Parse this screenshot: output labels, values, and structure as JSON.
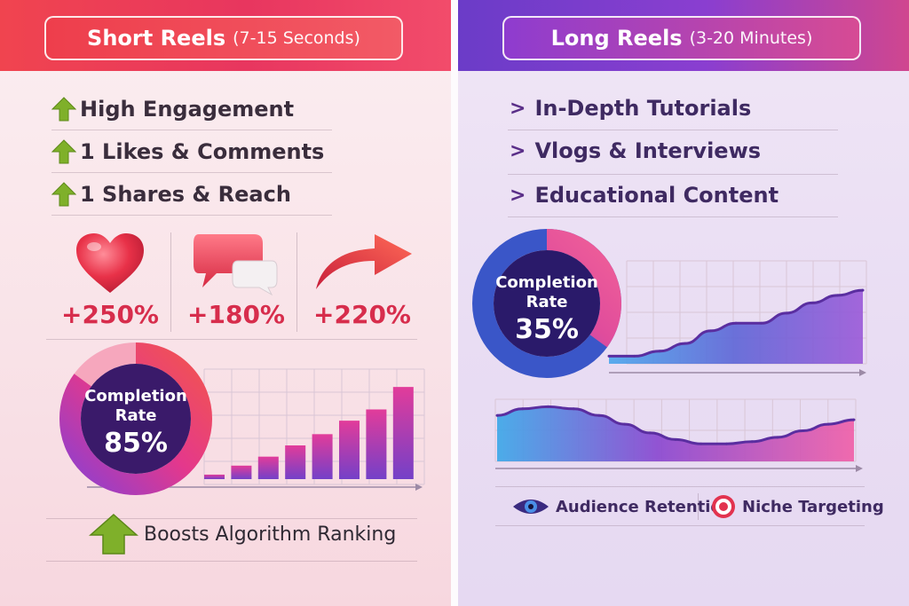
{
  "left": {
    "header": {
      "title": "Short Reels",
      "subtitle": "(7-15 Seconds)"
    },
    "bullets": [
      {
        "label": "High Engagement"
      },
      {
        "label": "1 Likes & Comments"
      },
      {
        "label": "1 Shares & Reach"
      }
    ],
    "metrics": [
      {
        "icon": "heart-icon",
        "value": "+250%"
      },
      {
        "icon": "speech-bubbles-icon",
        "value": "+180%"
      },
      {
        "icon": "share-arrow-icon",
        "value": "+220%"
      }
    ],
    "completion": {
      "title_line1": "Completion",
      "title_line2": "Rate",
      "value": "85%",
      "fraction": 0.85
    },
    "footer": {
      "label": "Boosts Algorithm Ranking"
    }
  },
  "right": {
    "header": {
      "title": "Long Reels",
      "subtitle": "(3-20 Minutes)"
    },
    "bullets": [
      {
        "label": "In-Depth Tutorials"
      },
      {
        "label": "Vlogs & Interviews"
      },
      {
        "label": "Educational Content"
      }
    ],
    "completion": {
      "title_line1": "Completion",
      "title_line2": "Rate",
      "value": "35%",
      "fraction": 0.35
    },
    "legend": [
      {
        "icon": "eye-icon",
        "label": "Audience Retention"
      },
      {
        "icon": "target-icon",
        "label": "Niche Targeting"
      }
    ]
  },
  "chart_data": [
    {
      "type": "bar",
      "categories": [
        "1",
        "2",
        "3",
        "4",
        "5",
        "6",
        "7",
        "8"
      ],
      "values": [
        2,
        6,
        10,
        15,
        20,
        26,
        31,
        41
      ],
      "ylim": [
        0,
        45
      ],
      "grid": true
    },
    {
      "type": "area",
      "x": [
        1,
        2,
        3,
        4,
        5,
        6,
        7,
        8,
        9,
        10,
        11
      ],
      "values": [
        3,
        3,
        5,
        8,
        13,
        16,
        16,
        20,
        24,
        27,
        29
      ],
      "ylim": [
        0,
        35
      ],
      "grid": true
    },
    {
      "type": "area",
      "x": [
        1,
        2,
        3,
        4,
        5,
        6,
        7,
        8,
        9,
        10,
        11,
        12,
        13,
        14,
        15
      ],
      "values": [
        21,
        24,
        25,
        24,
        21,
        17,
        13,
        10,
        8,
        8,
        9,
        11,
        14,
        17,
        19
      ],
      "ylim": [
        0,
        30
      ],
      "grid": true
    }
  ],
  "colors": {
    "red": "#e8365f",
    "purple": "#6b3cc8",
    "pink": "#e94f9a",
    "green": "#86a829"
  }
}
